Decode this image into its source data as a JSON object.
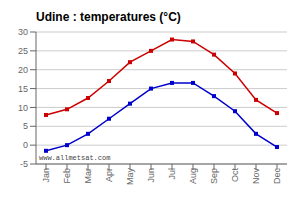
{
  "chart_data": {
    "type": "line",
    "title": "Udine : temperatures (°C)",
    "categories": [
      "Jan",
      "Feb",
      "Mar",
      "Apr",
      "May",
      "Jun",
      "Jul",
      "Aug",
      "Sep",
      "Oct",
      "Nov",
      "Dec"
    ],
    "series": [
      {
        "color": "#cc0000",
        "values": [
          8,
          9.5,
          12.5,
          17,
          22,
          25,
          28,
          27.5,
          24,
          19,
          12,
          8.5
        ]
      },
      {
        "color": "#0000cc",
        "values": [
          -1.5,
          0,
          3,
          7,
          11,
          15,
          16.5,
          16.5,
          13,
          9,
          3,
          -0.5
        ]
      }
    ],
    "ylim": [
      -5,
      30
    ],
    "yticks": [
      -5,
      0,
      5,
      10,
      15,
      20,
      25,
      30
    ],
    "grid": true,
    "marker": "square",
    "annotations": [
      "www.allmetsat.com"
    ]
  }
}
